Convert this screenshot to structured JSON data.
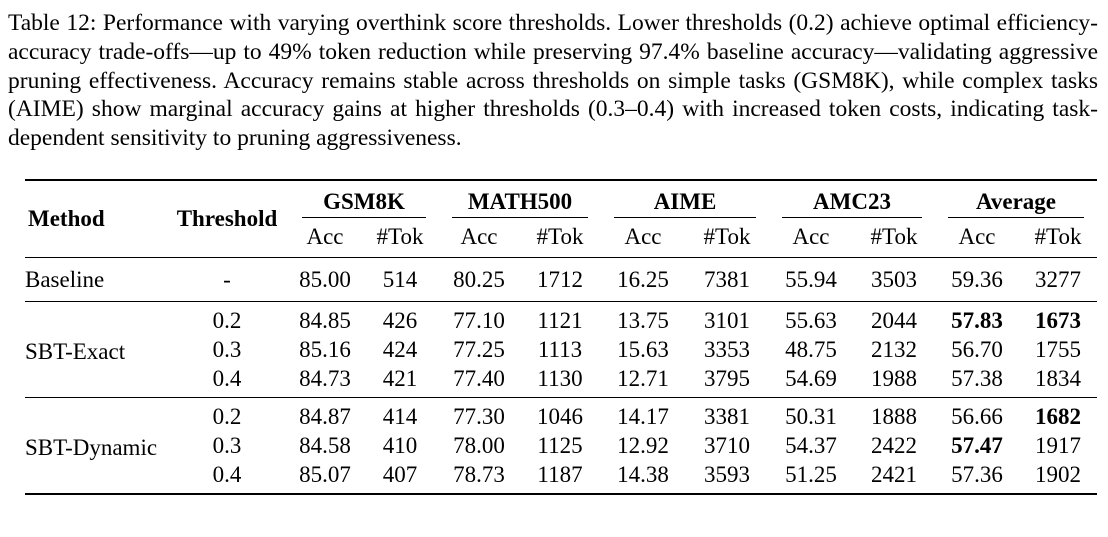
{
  "caption": {
    "label": "Table 12:",
    "text": "Performance with varying overthink score thresholds. Lower thresholds (0.2) achieve optimal efficiency-accuracy trade-offs—up to 49% token reduction while preserving 97.4% baseline accuracy—validating aggressive pruning effectiveness. Accuracy remains stable across thresholds on simple tasks (GSM8K), while complex tasks (AIME) show marginal accuracy gains at higher thresholds (0.3–0.4) with increased token costs, indicating task-dependent sensitivity to pruning aggressiveness."
  },
  "table": {
    "headers": {
      "method": "Method",
      "threshold": "Threshold"
    },
    "groups": [
      "GSM8K",
      "MATH500",
      "AIME",
      "AMC23",
      "Average"
    ],
    "subheaders": [
      "Acc",
      "#Tok"
    ],
    "body": [
      {
        "method": "Baseline",
        "rows": [
          {
            "threshold": "-",
            "values": [
              "85.00",
              "514",
              "80.25",
              "1712",
              "16.25",
              "7381",
              "55.94",
              "3503",
              "59.36",
              "3277"
            ]
          }
        ]
      },
      {
        "method": "SBT-Exact",
        "rows": [
          {
            "threshold": "0.2",
            "values": [
              "84.85",
              "426",
              "77.10",
              "1121",
              "13.75",
              "3101",
              "55.63",
              "2044",
              "57.83",
              "1673"
            ]
          },
          {
            "threshold": "0.3",
            "values": [
              "85.16",
              "424",
              "77.25",
              "1113",
              "15.63",
              "3353",
              "48.75",
              "2132",
              "56.70",
              "1755"
            ]
          },
          {
            "threshold": "0.4",
            "values": [
              "84.73",
              "421",
              "77.40",
              "1130",
              "12.71",
              "3795",
              "54.69",
              "1988",
              "57.38",
              "1834"
            ]
          }
        ]
      },
      {
        "method": "SBT-Dynamic",
        "rows": [
          {
            "threshold": "0.2",
            "values": [
              "84.87",
              "414",
              "77.30",
              "1046",
              "14.17",
              "3381",
              "50.31",
              "1888",
              "56.66",
              "1682"
            ]
          },
          {
            "threshold": "0.3",
            "values": [
              "84.58",
              "410",
              "78.00",
              "1125",
              "12.92",
              "3710",
              "54.37",
              "2422",
              "57.47",
              "1917"
            ]
          },
          {
            "threshold": "0.4",
            "values": [
              "85.07",
              "407",
              "78.73",
              "1187",
              "14.38",
              "3593",
              "51.25",
              "2421",
              "57.36",
              "1902"
            ]
          }
        ]
      }
    ],
    "bold_cells": [
      {
        "group": 1,
        "row": 0,
        "value_indices": [
          8,
          9
        ]
      },
      {
        "group": 2,
        "row": 0,
        "value_indices": [
          9
        ]
      },
      {
        "group": 2,
        "row": 1,
        "value_indices": [
          8
        ]
      }
    ]
  },
  "colors": {
    "text": "#000000",
    "background": "#ffffff",
    "rule": "#000000"
  }
}
